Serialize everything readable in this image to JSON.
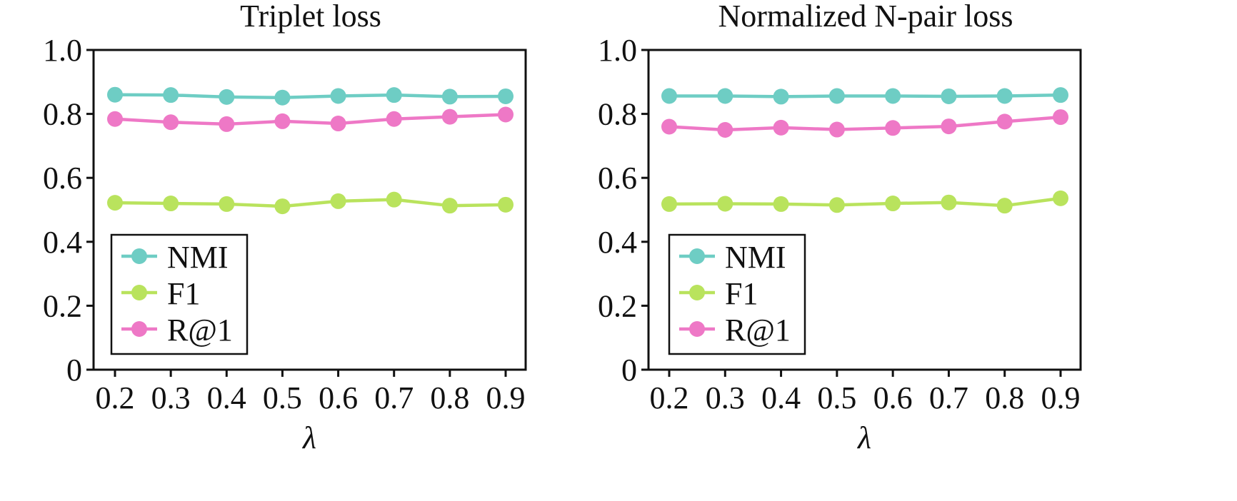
{
  "chart_data": [
    {
      "type": "line",
      "title": "Triplet loss",
      "xlabel": "λ",
      "ylabel": "",
      "x": [
        0.2,
        0.3,
        0.4,
        0.5,
        0.6,
        0.7,
        0.8,
        0.9
      ],
      "x_tick_labels": [
        "0.2",
        "0.3",
        "0.4",
        "0.5",
        "0.6",
        "0.7",
        "0.8",
        "0.9"
      ],
      "ylim": [
        0,
        1.0
      ],
      "y_ticks": [
        0,
        0.2,
        0.4,
        0.6,
        0.8,
        1.0
      ],
      "y_tick_labels": [
        "0",
        "0.2",
        "0.4",
        "0.6",
        "0.8",
        "1.0"
      ],
      "grid": false,
      "legend_position": "bottom-left",
      "series": [
        {
          "name": "NMI",
          "color": "#6ecdc4",
          "values": [
            0.86,
            0.859,
            0.853,
            0.851,
            0.856,
            0.859,
            0.854,
            0.855
          ]
        },
        {
          "name": "F1",
          "color": "#b9e35d",
          "values": [
            0.522,
            0.52,
            0.518,
            0.511,
            0.527,
            0.532,
            0.513,
            0.516
          ]
        },
        {
          "name": "R@1",
          "color": "#ee78c6",
          "values": [
            0.784,
            0.774,
            0.768,
            0.777,
            0.77,
            0.784,
            0.791,
            0.798
          ]
        }
      ]
    },
    {
      "type": "line",
      "title": "Normalized N-pair loss",
      "xlabel": "λ",
      "ylabel": "",
      "x": [
        0.2,
        0.3,
        0.4,
        0.5,
        0.6,
        0.7,
        0.8,
        0.9
      ],
      "x_tick_labels": [
        "0.2",
        "0.3",
        "0.4",
        "0.5",
        "0.6",
        "0.7",
        "0.8",
        "0.9"
      ],
      "ylim": [
        0,
        1.0
      ],
      "y_ticks": [
        0,
        0.2,
        0.4,
        0.6,
        0.8,
        1.0
      ],
      "y_tick_labels": [
        "0",
        "0.2",
        "0.4",
        "0.6",
        "0.8",
        "1.0"
      ],
      "grid": false,
      "legend_position": "bottom-left",
      "series": [
        {
          "name": "NMI",
          "color": "#6ecdc4",
          "values": [
            0.856,
            0.856,
            0.854,
            0.856,
            0.856,
            0.855,
            0.856,
            0.859
          ]
        },
        {
          "name": "F1",
          "color": "#b9e35d",
          "values": [
            0.518,
            0.519,
            0.518,
            0.515,
            0.52,
            0.523,
            0.513,
            0.536
          ]
        },
        {
          "name": "R@1",
          "color": "#ee78c6",
          "values": [
            0.76,
            0.75,
            0.757,
            0.751,
            0.756,
            0.761,
            0.776,
            0.79
          ]
        }
      ]
    }
  ]
}
